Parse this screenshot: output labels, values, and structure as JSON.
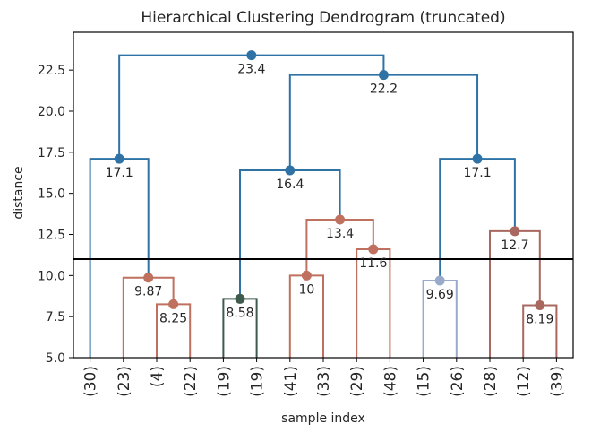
{
  "chart_data": {
    "type": "dendrogram",
    "title": "Hierarchical Clustering Dendrogram (truncated)",
    "xlabel": "sample index",
    "ylabel": "distance",
    "ylim": [
      5.0,
      24.8
    ],
    "yticks": [
      5.0,
      7.5,
      10.0,
      12.5,
      15.0,
      17.5,
      20.0,
      22.5
    ],
    "ytick_labels": [
      "5.0",
      "7.5",
      "10.0",
      "12.5",
      "15.0",
      "17.5",
      "20.0",
      "22.5"
    ],
    "leaf_labels": [
      "(30)",
      "(23)",
      "(4)",
      "(22)",
      "(19)",
      "(19)",
      "(41)",
      "(33)",
      "(29)",
      "(48)",
      "(15)",
      "(26)",
      "(28)",
      "(12)",
      "(39)"
    ],
    "cut_threshold": 11.0,
    "colors": {
      "above": "#2f73a6",
      "red": "#c0705e",
      "mauve": "#a8685f",
      "green": "#3d5a4c",
      "lightblue": "#9aaacb",
      "axis": "#000000",
      "cutline": "#000000"
    },
    "merges": [
      {
        "left": 2,
        "right": 3,
        "height": 8.25,
        "color": "red",
        "label": "8.25"
      },
      {
        "left": 1,
        "right": "m0",
        "height": 9.87,
        "color": "red",
        "label": "9.87"
      },
      {
        "left": 0,
        "right": "m1",
        "height": 17.1,
        "color": "above",
        "label": "17.1"
      },
      {
        "left": 4,
        "right": 5,
        "height": 8.58,
        "color": "green",
        "label": "8.58"
      },
      {
        "left": 6,
        "right": 7,
        "height": 10.0,
        "color": "red",
        "label": "10"
      },
      {
        "left": 8,
        "right": 9,
        "height": 11.6,
        "color": "red",
        "label": "11.6"
      },
      {
        "left": "m4",
        "right": "m5",
        "height": 13.4,
        "color": "red",
        "label": "13.4"
      },
      {
        "left": "m3",
        "right": "m6",
        "height": 16.4,
        "color": "above",
        "label": "16.4"
      },
      {
        "left": 10,
        "right": 11,
        "height": 9.69,
        "color": "lightblue",
        "label": "9.69"
      },
      {
        "left": 13,
        "right": 14,
        "height": 8.19,
        "color": "mauve",
        "label": "8.19"
      },
      {
        "left": 12,
        "right": "m9",
        "height": 12.7,
        "color": "mauve",
        "label": "12.7"
      },
      {
        "left": "m8",
        "right": "m10",
        "height": 17.1,
        "color": "above",
        "label": "17.1"
      },
      {
        "left": "m7",
        "right": "m11",
        "height": 22.2,
        "color": "above",
        "label": "22.2"
      },
      {
        "left": "m2",
        "right": "m12",
        "height": 23.4,
        "color": "above",
        "label": "23.4"
      }
    ],
    "grid": false
  }
}
